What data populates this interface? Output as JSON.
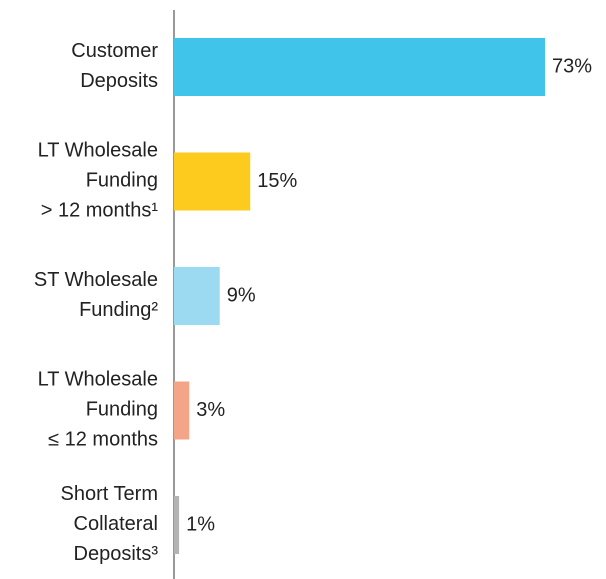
{
  "chart_data": {
    "type": "bar",
    "orientation": "horizontal",
    "categories": [
      [
        "Customer",
        "Deposits"
      ],
      [
        "LT Wholesale",
        "Funding",
        "> 12 months¹"
      ],
      [
        "ST Wholesale",
        "Funding²"
      ],
      [
        "LT Wholesale",
        "Funding",
        "≤ 12 months"
      ],
      [
        "Short Term",
        "Collateral",
        "Deposits³"
      ]
    ],
    "values": [
      73,
      15,
      9,
      3,
      1
    ],
    "value_labels": [
      "73%",
      "15%",
      "9%",
      "3%",
      "1%"
    ],
    "colors": [
      "#40c4ea",
      "#fdcb1e",
      "#9bdaf1",
      "#f5a587",
      "#b3b3b3"
    ]
  }
}
